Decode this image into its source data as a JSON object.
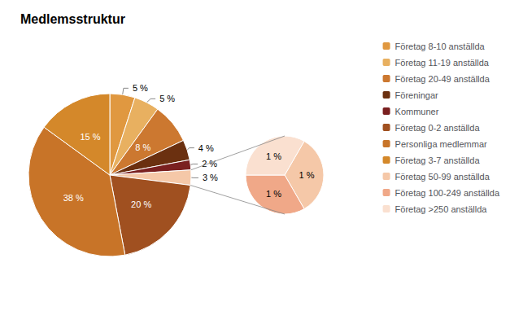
{
  "chart_data": [
    {
      "type": "pie",
      "title": "Medlemsstruktur",
      "categories": [
        "Företag 8-10 anställda",
        "Företag 11-19 anställda",
        "Företag 20-49 anställda",
        "Föreningar",
        "Kommuner",
        null,
        "Företag 0-2 anställda",
        "Personliga medlemmar",
        "Företag 3-7 anställda"
      ],
      "values": [
        5,
        5,
        8,
        4,
        2,
        3,
        20,
        38,
        15
      ],
      "value_labels": [
        "5 %",
        "5 %",
        "8 %",
        "4 %",
        "2 %",
        "3 %",
        "20 %",
        "38 %",
        "15 %"
      ],
      "colors": [
        "#E09840",
        "#E8B060",
        "#CC7830",
        "#6B3010",
        "#7A2020",
        "#F5C8A8",
        "#A05020",
        "#C87428",
        "#D4882A"
      ],
      "data_labels": true,
      "legend": "upper right"
    },
    {
      "type": "pie",
      "categories": [
        "Företag 50-99 anställda",
        "Företag 100-249 anställda",
        "Företag >250 anställda"
      ],
      "values": [
        1,
        1,
        1
      ],
      "value_labels": [
        "1 %",
        "1 %",
        "1 %"
      ],
      "colors": [
        "#F5C8A8",
        "#F0A888",
        "#FAE0D0"
      ],
      "data_labels": true
    }
  ]
}
